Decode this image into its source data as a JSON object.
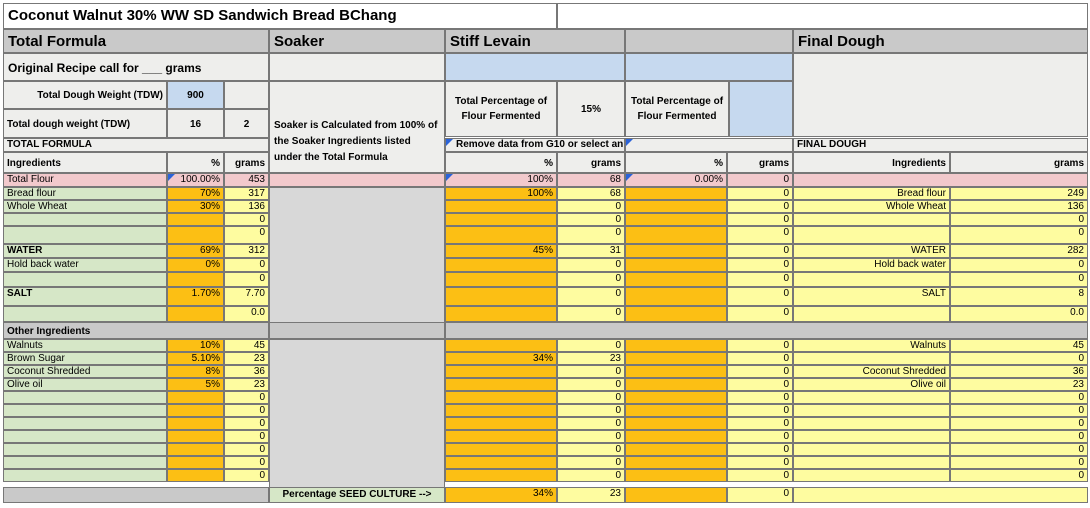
{
  "sheet": {
    "title": "Coconut Walnut 30% WW SD Sandwich Bread BChang",
    "section_headers": {
      "total_formula": "Total Formula",
      "soaker": "Soaker",
      "stiff_levain": "Stiff Levain",
      "final_dough": "Final Dough"
    },
    "original_recipe": "Original Recipe call for ___ grams",
    "tdw_label_1": "Total Dough Weight (TDW)",
    "tdw_value_1": "900",
    "tdw_label_2": "Total dough weight (TDW)",
    "tdw_value_2a": "16",
    "tdw_value_2b": "2",
    "soaker_note": "Soaker is Calculated from 100% of the Soaker Ingredients listed under the Total Formula",
    "levain_pct_label": "Total Percentage of Flour Fermented",
    "levain_pct_value": "15%",
    "levain2_pct_label": "Total Percentage of Flour Fermented",
    "total_formula_label": "TOTAL FORMULA",
    "remove_data_note": "Remove data from G10 or select an",
    "final_dough_label": "FINAL DOUGH",
    "col_headers": {
      "ingredients": "Ingredients",
      "pct": "%",
      "grams": "grams"
    },
    "total_flour": {
      "label": "Total Flour",
      "pct": "100.00%",
      "grams": "453",
      "lev_pct": "100%",
      "lev_grams": "68",
      "l2_pct": "0.00%",
      "l2_grams": "0"
    },
    "rows": [
      {
        "name": "Bread flour",
        "pct": "70%",
        "grams": "317",
        "lp": "100%",
        "lg": "68",
        "l2": "0",
        "fn": "Bread flour",
        "fg": "249"
      },
      {
        "name": "Whole Wheat",
        "pct": "30%",
        "grams": "136",
        "lp": "",
        "lg": "0",
        "l2": "0",
        "fn": "Whole Wheat",
        "fg": "136"
      },
      {
        "name": "",
        "pct": "",
        "grams": "0",
        "lp": "",
        "lg": "0",
        "l2": "0",
        "fn": "",
        "fg": "0"
      },
      {
        "name": "",
        "pct": "",
        "grams": "0",
        "lp": "",
        "lg": "0",
        "l2": "0",
        "fn": "",
        "fg": "0"
      },
      {
        "name": "WATER",
        "pct": "69%",
        "grams": "312",
        "lp": "45%",
        "lg": "31",
        "l2": "0",
        "fn": "WATER",
        "fg": "282"
      },
      {
        "name": "Hold back water",
        "pct": "0%",
        "grams": "0",
        "lp": "",
        "lg": "0",
        "l2": "0",
        "fn": "Hold back water",
        "fg": "0"
      },
      {
        "name": "",
        "pct": "",
        "grams": "0",
        "lp": "",
        "lg": "0",
        "l2": "0",
        "fn": "",
        "fg": "0"
      },
      {
        "name": "SALT",
        "pct": "1.70%",
        "grams": "7.70",
        "lp": "",
        "lg": "0",
        "l2": "0",
        "fn": "SALT",
        "fg": "8"
      },
      {
        "name": "",
        "pct": "",
        "grams": "0.0",
        "lp": "",
        "lg": "0",
        "l2": "0",
        "fn": "",
        "fg": "0.0"
      }
    ],
    "other_label": "Other Ingredients",
    "other_rows": [
      {
        "name": "Walnuts",
        "pct": "10%",
        "grams": "45",
        "lp": "",
        "lg": "0",
        "l2": "0",
        "fn": "Walnuts",
        "fg": "45"
      },
      {
        "name": "Brown Sugar",
        "pct": "5.10%",
        "grams": "23",
        "lp": "34%",
        "lg": "23",
        "l2": "0",
        "fn": "",
        "fg": "0"
      },
      {
        "name": "Coconut Shredded",
        "pct": "8%",
        "grams": "36",
        "lp": "",
        "lg": "0",
        "l2": "0",
        "fn": "Coconut Shredded",
        "fg": "36"
      },
      {
        "name": "Olive oil",
        "pct": "5%",
        "grams": "23",
        "lp": "",
        "lg": "0",
        "l2": "0",
        "fn": "Olive oil",
        "fg": "23"
      },
      {
        "name": "",
        "pct": "",
        "grams": "0",
        "lp": "",
        "lg": "0",
        "l2": "0",
        "fn": "",
        "fg": "0"
      },
      {
        "name": "",
        "pct": "",
        "grams": "0",
        "lp": "",
        "lg": "0",
        "l2": "0",
        "fn": "",
        "fg": "0"
      },
      {
        "name": "",
        "pct": "",
        "grams": "0",
        "lp": "",
        "lg": "0",
        "l2": "0",
        "fn": "",
        "fg": "0"
      },
      {
        "name": "",
        "pct": "",
        "grams": "0",
        "lp": "",
        "lg": "0",
        "l2": "0",
        "fn": "",
        "fg": "0"
      },
      {
        "name": "",
        "pct": "",
        "grams": "0",
        "lp": "",
        "lg": "0",
        "l2": "0",
        "fn": "",
        "fg": "0"
      },
      {
        "name": "",
        "pct": "",
        "grams": "0",
        "lp": "",
        "lg": "0",
        "l2": "0",
        "fn": "",
        "fg": "0"
      },
      {
        "name": "",
        "pct": "",
        "grams": "0",
        "lp": "",
        "lg": "0",
        "l2": "0",
        "fn": "",
        "fg": "0"
      }
    ],
    "seed_culture_label": "Percentage SEED CULTURE  -->",
    "seed_pct": "34%",
    "seed_grams": "23",
    "seed_l2": "0"
  }
}
